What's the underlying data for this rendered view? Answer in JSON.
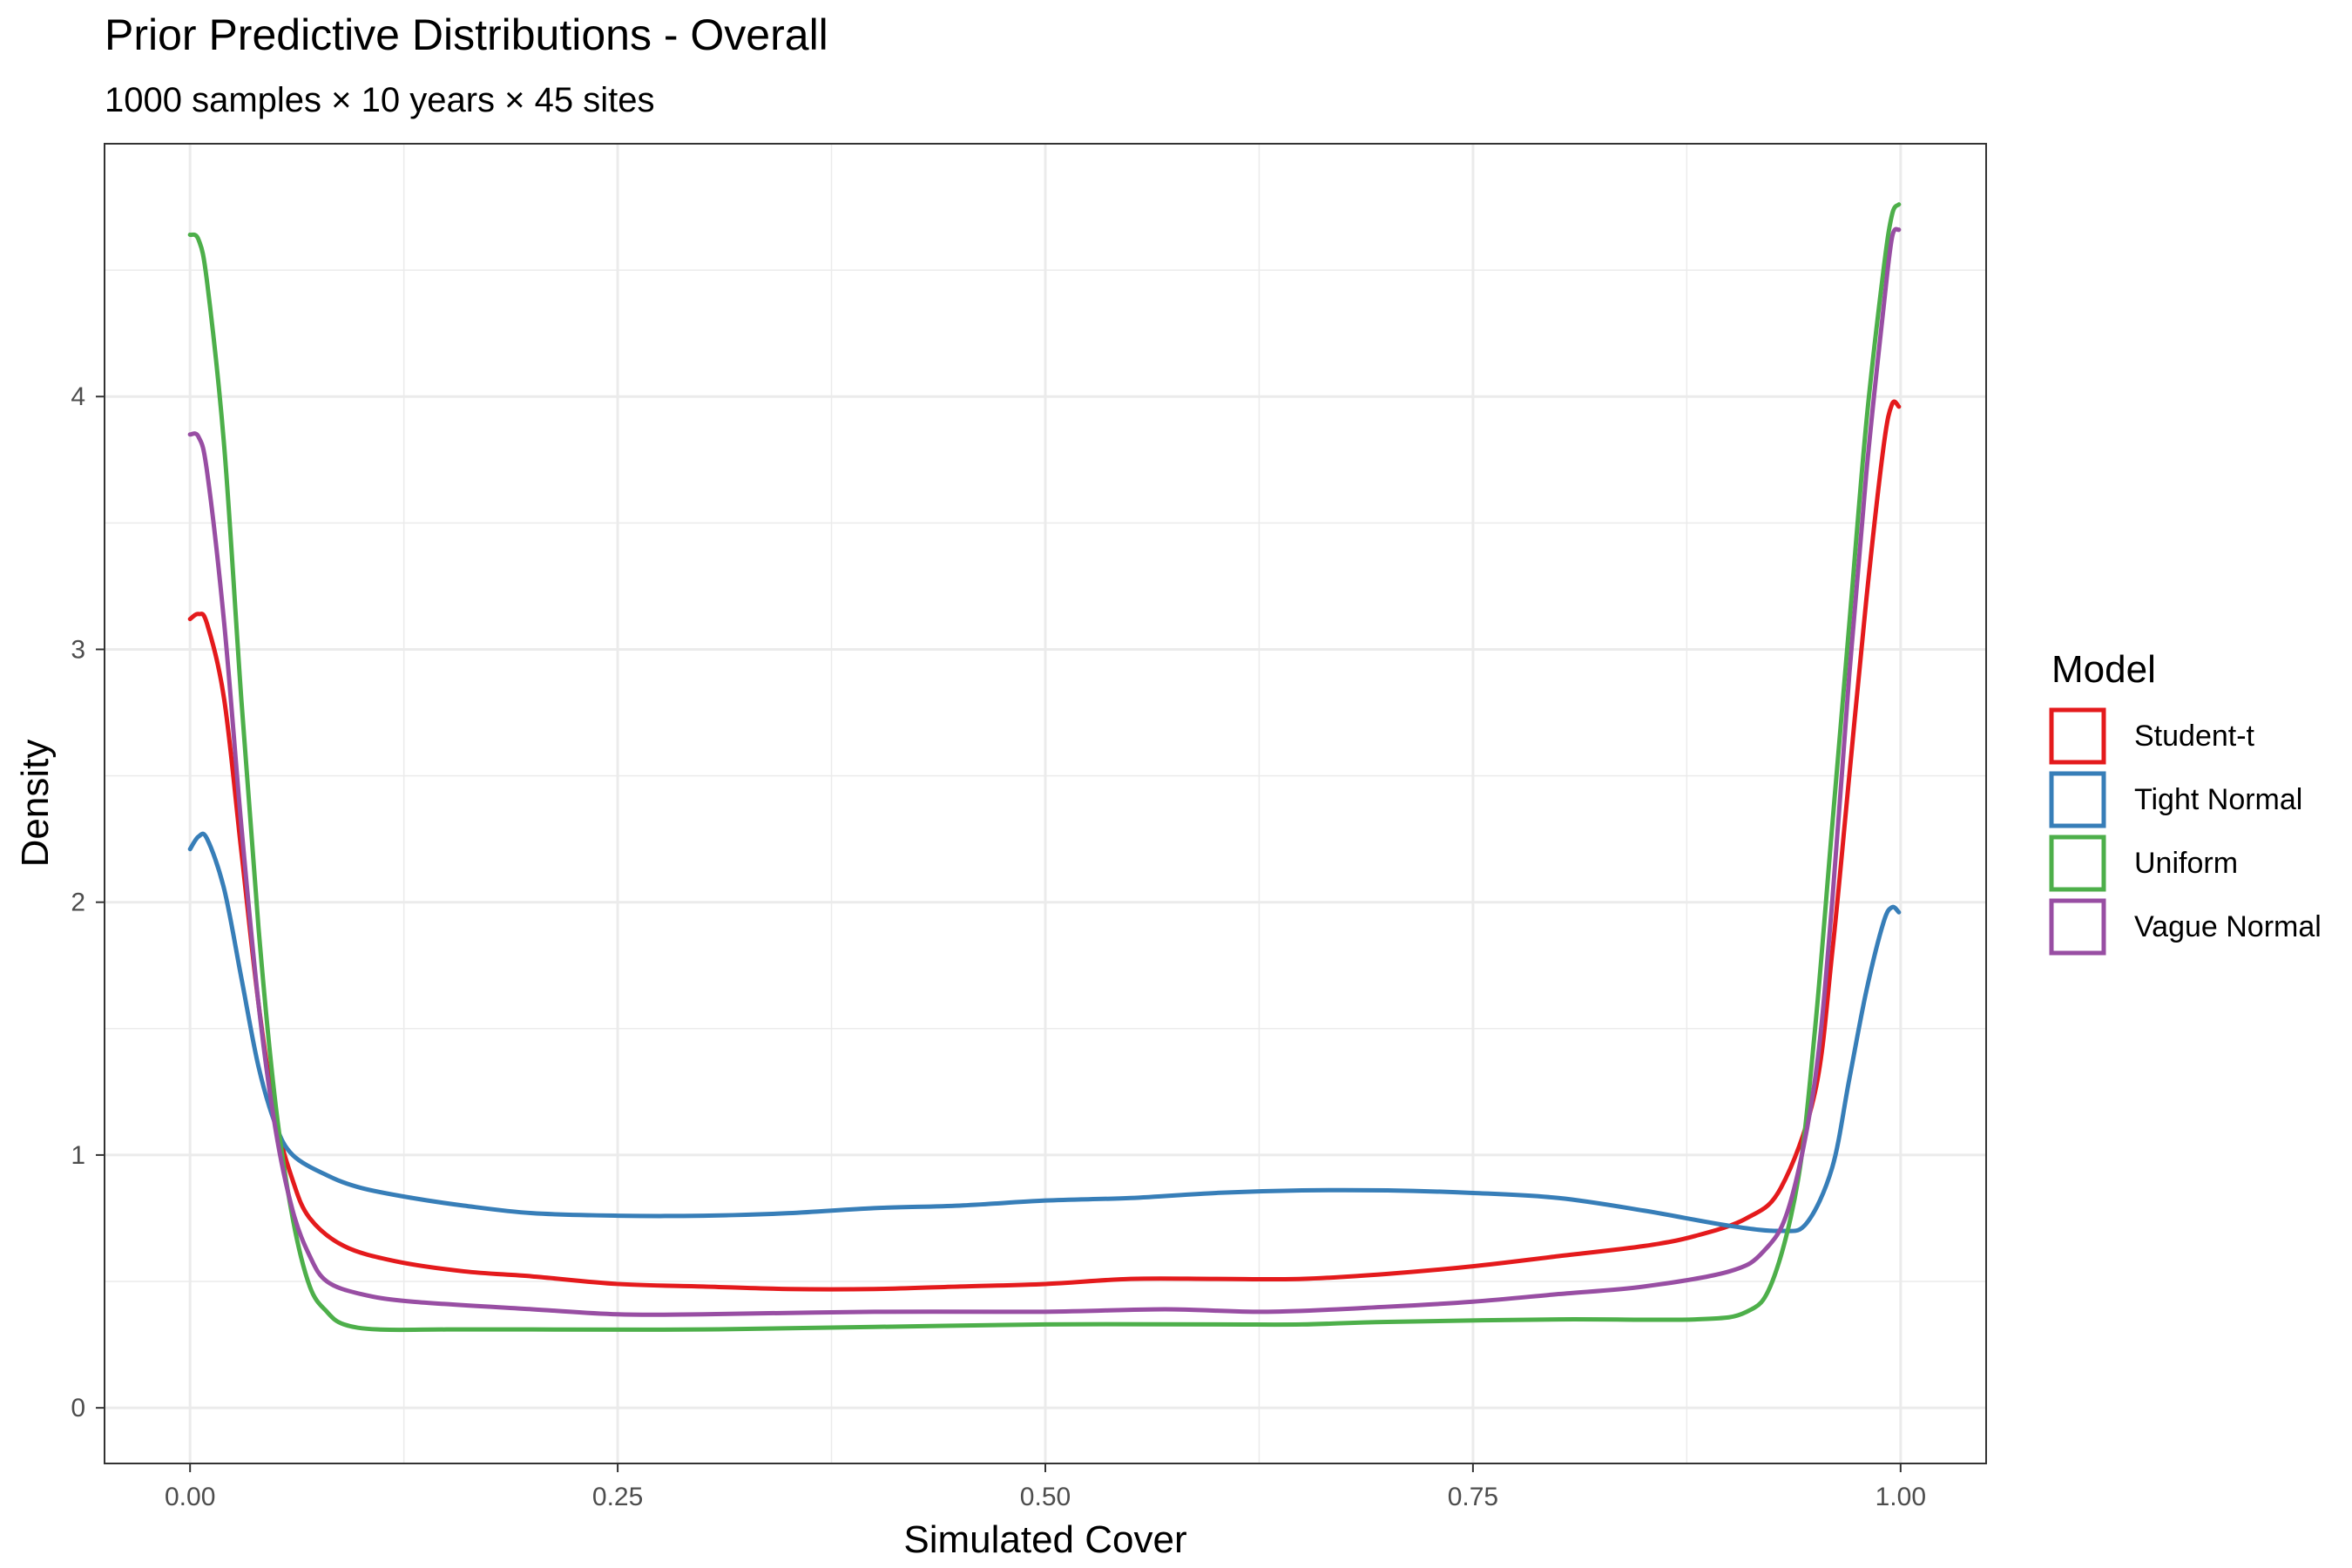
{
  "chart_data": {
    "type": "line",
    "title": "Prior Predictive Distributions - Overall",
    "subtitle": "1000 samples × 10 years × 45 sites",
    "xlabel": "Simulated Cover",
    "ylabel": "Density",
    "xlim": [
      -0.05,
      1.05
    ],
    "ylim": [
      -0.22,
      5.0
    ],
    "x_ticks": [
      0.0,
      0.25,
      0.5,
      0.75,
      1.0
    ],
    "x_tick_labels": [
      "0.00",
      "0.25",
      "0.50",
      "0.75",
      "1.00"
    ],
    "y_ticks": [
      0,
      1,
      2,
      3,
      4
    ],
    "y_tick_labels": [
      "0",
      "1",
      "2",
      "3",
      "4"
    ],
    "grid": true,
    "legend": {
      "title": "Model",
      "position": "right"
    },
    "series": [
      {
        "name": "Student-t",
        "color": "#E41A1C",
        "points": [
          [
            0.0,
            3.12
          ],
          [
            0.005,
            3.14
          ],
          [
            0.01,
            3.1
          ],
          [
            0.02,
            2.8
          ],
          [
            0.03,
            2.2
          ],
          [
            0.04,
            1.6
          ],
          [
            0.05,
            1.15
          ],
          [
            0.06,
            0.9
          ],
          [
            0.07,
            0.75
          ],
          [
            0.09,
            0.64
          ],
          [
            0.12,
            0.58
          ],
          [
            0.16,
            0.54
          ],
          [
            0.2,
            0.52
          ],
          [
            0.25,
            0.49
          ],
          [
            0.3,
            0.48
          ],
          [
            0.35,
            0.47
          ],
          [
            0.4,
            0.47
          ],
          [
            0.45,
            0.48
          ],
          [
            0.5,
            0.49
          ],
          [
            0.55,
            0.51
          ],
          [
            0.6,
            0.51
          ],
          [
            0.65,
            0.51
          ],
          [
            0.7,
            0.53
          ],
          [
            0.75,
            0.56
          ],
          [
            0.8,
            0.6
          ],
          [
            0.85,
            0.64
          ],
          [
            0.88,
            0.68
          ],
          [
            0.91,
            0.75
          ],
          [
            0.93,
            0.87
          ],
          [
            0.95,
            1.25
          ],
          [
            0.96,
            1.8
          ],
          [
            0.97,
            2.5
          ],
          [
            0.98,
            3.2
          ],
          [
            0.99,
            3.8
          ],
          [
            0.995,
            3.97
          ],
          [
            0.999,
            3.96
          ]
        ]
      },
      {
        "name": "Tight Normal",
        "color": "#377EB8",
        "points": [
          [
            0.0,
            2.21
          ],
          [
            0.005,
            2.26
          ],
          [
            0.01,
            2.25
          ],
          [
            0.02,
            2.05
          ],
          [
            0.03,
            1.7
          ],
          [
            0.04,
            1.35
          ],
          [
            0.05,
            1.12
          ],
          [
            0.06,
            1.0
          ],
          [
            0.08,
            0.92
          ],
          [
            0.1,
            0.87
          ],
          [
            0.13,
            0.83
          ],
          [
            0.16,
            0.8
          ],
          [
            0.2,
            0.77
          ],
          [
            0.25,
            0.76
          ],
          [
            0.3,
            0.76
          ],
          [
            0.35,
            0.77
          ],
          [
            0.4,
            0.79
          ],
          [
            0.45,
            0.8
          ],
          [
            0.5,
            0.82
          ],
          [
            0.55,
            0.83
          ],
          [
            0.6,
            0.85
          ],
          [
            0.65,
            0.86
          ],
          [
            0.7,
            0.86
          ],
          [
            0.75,
            0.85
          ],
          [
            0.8,
            0.83
          ],
          [
            0.85,
            0.78
          ],
          [
            0.9,
            0.72
          ],
          [
            0.93,
            0.7
          ],
          [
            0.945,
            0.73
          ],
          [
            0.96,
            0.95
          ],
          [
            0.97,
            1.3
          ],
          [
            0.98,
            1.65
          ],
          [
            0.99,
            1.92
          ],
          [
            0.995,
            1.98
          ],
          [
            0.999,
            1.96
          ]
        ]
      },
      {
        "name": "Uniform",
        "color": "#4DAF4A",
        "points": [
          [
            0.0,
            4.64
          ],
          [
            0.005,
            4.62
          ],
          [
            0.01,
            4.45
          ],
          [
            0.02,
            3.8
          ],
          [
            0.03,
            2.8
          ],
          [
            0.04,
            1.9
          ],
          [
            0.05,
            1.2
          ],
          [
            0.06,
            0.75
          ],
          [
            0.07,
            0.48
          ],
          [
            0.08,
            0.38
          ],
          [
            0.09,
            0.33
          ],
          [
            0.11,
            0.31
          ],
          [
            0.15,
            0.31
          ],
          [
            0.2,
            0.31
          ],
          [
            0.3,
            0.31
          ],
          [
            0.4,
            0.32
          ],
          [
            0.5,
            0.33
          ],
          [
            0.6,
            0.33
          ],
          [
            0.65,
            0.33
          ],
          [
            0.7,
            0.34
          ],
          [
            0.8,
            0.35
          ],
          [
            0.88,
            0.35
          ],
          [
            0.91,
            0.38
          ],
          [
            0.925,
            0.5
          ],
          [
            0.94,
            0.9
          ],
          [
            0.95,
            1.5
          ],
          [
            0.96,
            2.3
          ],
          [
            0.97,
            3.1
          ],
          [
            0.98,
            3.9
          ],
          [
            0.99,
            4.5
          ],
          [
            0.995,
            4.72
          ],
          [
            0.999,
            4.76
          ]
        ]
      },
      {
        "name": "Vague Normal",
        "color": "#984EA3",
        "points": [
          [
            0.0,
            3.85
          ],
          [
            0.005,
            3.84
          ],
          [
            0.01,
            3.7
          ],
          [
            0.02,
            3.1
          ],
          [
            0.03,
            2.3
          ],
          [
            0.04,
            1.6
          ],
          [
            0.05,
            1.1
          ],
          [
            0.06,
            0.78
          ],
          [
            0.07,
            0.6
          ],
          [
            0.08,
            0.5
          ],
          [
            0.1,
            0.45
          ],
          [
            0.13,
            0.42
          ],
          [
            0.2,
            0.39
          ],
          [
            0.25,
            0.37
          ],
          [
            0.3,
            0.37
          ],
          [
            0.4,
            0.38
          ],
          [
            0.5,
            0.38
          ],
          [
            0.57,
            0.39
          ],
          [
            0.63,
            0.38
          ],
          [
            0.7,
            0.4
          ],
          [
            0.75,
            0.42
          ],
          [
            0.8,
            0.45
          ],
          [
            0.85,
            0.48
          ],
          [
            0.9,
            0.54
          ],
          [
            0.92,
            0.62
          ],
          [
            0.935,
            0.8
          ],
          [
            0.95,
            1.3
          ],
          [
            0.96,
            2.0
          ],
          [
            0.97,
            2.9
          ],
          [
            0.98,
            3.7
          ],
          [
            0.99,
            4.35
          ],
          [
            0.995,
            4.63
          ],
          [
            0.999,
            4.66
          ]
        ]
      }
    ]
  }
}
